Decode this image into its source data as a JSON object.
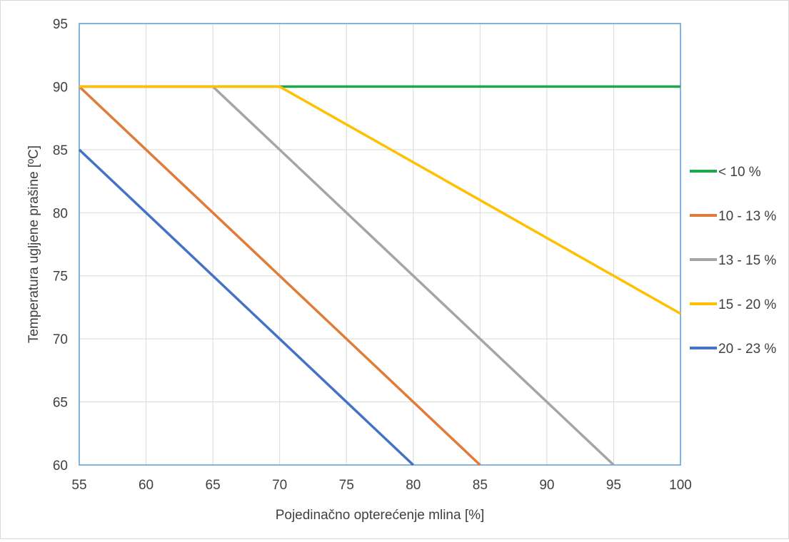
{
  "chart_data": {
    "type": "line",
    "title": "",
    "xlabel": "Pojedinačno opterećenje mlina [%]",
    "ylabel": "Temperatura ugljene prašine [ºC]",
    "xlim": [
      55,
      100
    ],
    "ylim": [
      60,
      95
    ],
    "xticks": [
      "55",
      "60",
      "65",
      "70",
      "75",
      "80",
      "85",
      "90",
      "95",
      "100"
    ],
    "yticks": [
      "60",
      "65",
      "70",
      "75",
      "80",
      "85",
      "90",
      "95"
    ],
    "grid": true,
    "legend_position": "right",
    "series": [
      {
        "name": "< 10 %",
        "color": "#1aa84a",
        "x": [
          55,
          100
        ],
        "y": [
          90,
          90
        ]
      },
      {
        "name": "10 - 13 %",
        "color": "#e07b39",
        "x": [
          55,
          85
        ],
        "y": [
          90,
          60
        ]
      },
      {
        "name": "13 - 15 %",
        "color": "#a5a5a5",
        "x": [
          55,
          65,
          95
        ],
        "y": [
          90,
          90,
          60
        ]
      },
      {
        "name": "15 - 20 %",
        "color": "#ffc000",
        "x": [
          55,
          70,
          100
        ],
        "y": [
          90,
          90,
          72
        ]
      },
      {
        "name": "20 - 23 %",
        "color": "#4472c4",
        "x": [
          55,
          80
        ],
        "y": [
          85,
          60
        ]
      }
    ]
  }
}
